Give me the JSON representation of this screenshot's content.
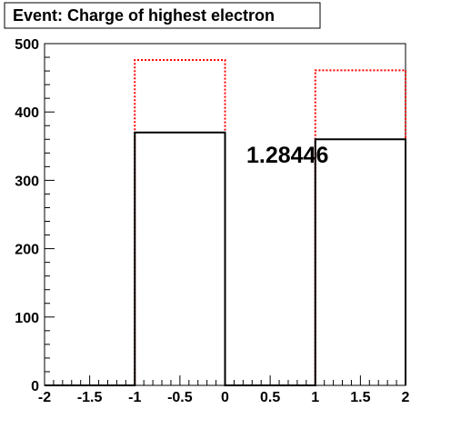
{
  "chart_data": {
    "type": "histogram",
    "title": "Event: Charge of highest electron",
    "annotation": "1.28446",
    "xlabel": "",
    "ylabel": "",
    "xlim": [
      -2,
      2
    ],
    "ylim": [
      0,
      500
    ],
    "x_ticks": [
      -2,
      -1.5,
      -1,
      -0.5,
      0,
      0.5,
      1,
      1.5,
      2
    ],
    "x_tick_labels": [
      "-2",
      "-1.5",
      "-1",
      "-0.5",
      "0",
      "0.5",
      "1",
      "1.5",
      "2"
    ],
    "y_ticks": [
      0,
      100,
      200,
      300,
      400,
      500
    ],
    "y_tick_labels": [
      "0",
      "100",
      "200",
      "300",
      "400",
      "500"
    ],
    "grid": false,
    "bin_edges": [
      -2,
      -1,
      0,
      1,
      2
    ],
    "series": [
      {
        "color": "#000000",
        "style": "solid",
        "values": [
          0,
          370,
          0,
          360
        ]
      },
      {
        "color": "#ff0000",
        "style": "dotted",
        "values": [
          0,
          476,
          0,
          461
        ]
      }
    ]
  }
}
